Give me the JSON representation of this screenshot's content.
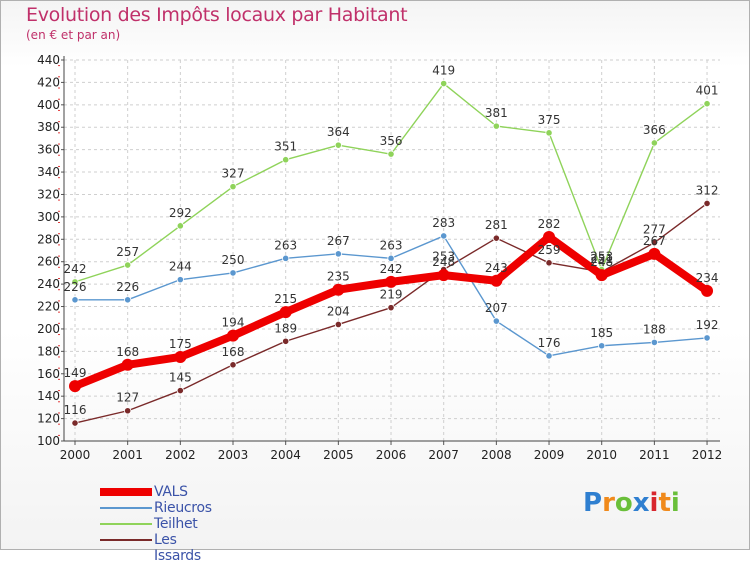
{
  "chart_data": {
    "type": "line",
    "title": "Evolution des Impôts locaux par Habitant",
    "subtitle": "(en € et par an)",
    "xlabel": "",
    "ylabel": "",
    "ylim": [
      100,
      440
    ],
    "ytick_step": 20,
    "categories": [
      "2000",
      "2001",
      "2002",
      "2003",
      "2004",
      "2005",
      "2006",
      "2007",
      "2008",
      "2009",
      "2010",
      "2011",
      "2012"
    ],
    "series": [
      {
        "name": "VALS",
        "color": "#ee0000",
        "values": [
          149,
          168,
          175,
          194,
          215,
          235,
          242,
          248,
          243,
          282,
          248,
          267,
          234
        ]
      },
      {
        "name": "Rieucros",
        "color": "#5b97cf",
        "values": [
          226,
          226,
          244,
          250,
          263,
          267,
          263,
          283,
          207,
          176,
          185,
          188,
          192
        ]
      },
      {
        "name": "Teilhet",
        "color": "#8fd35a",
        "values": [
          242,
          257,
          292,
          327,
          351,
          364,
          356,
          419,
          381,
          375,
          253,
          366,
          401
        ]
      },
      {
        "name": "Les Issards",
        "color": "#7a2a2a",
        "values": [
          116,
          127,
          145,
          168,
          189,
          204,
          219,
          253,
          281,
          259,
          251,
          277,
          312
        ]
      }
    ]
  },
  "logo_text": "Proxiti"
}
